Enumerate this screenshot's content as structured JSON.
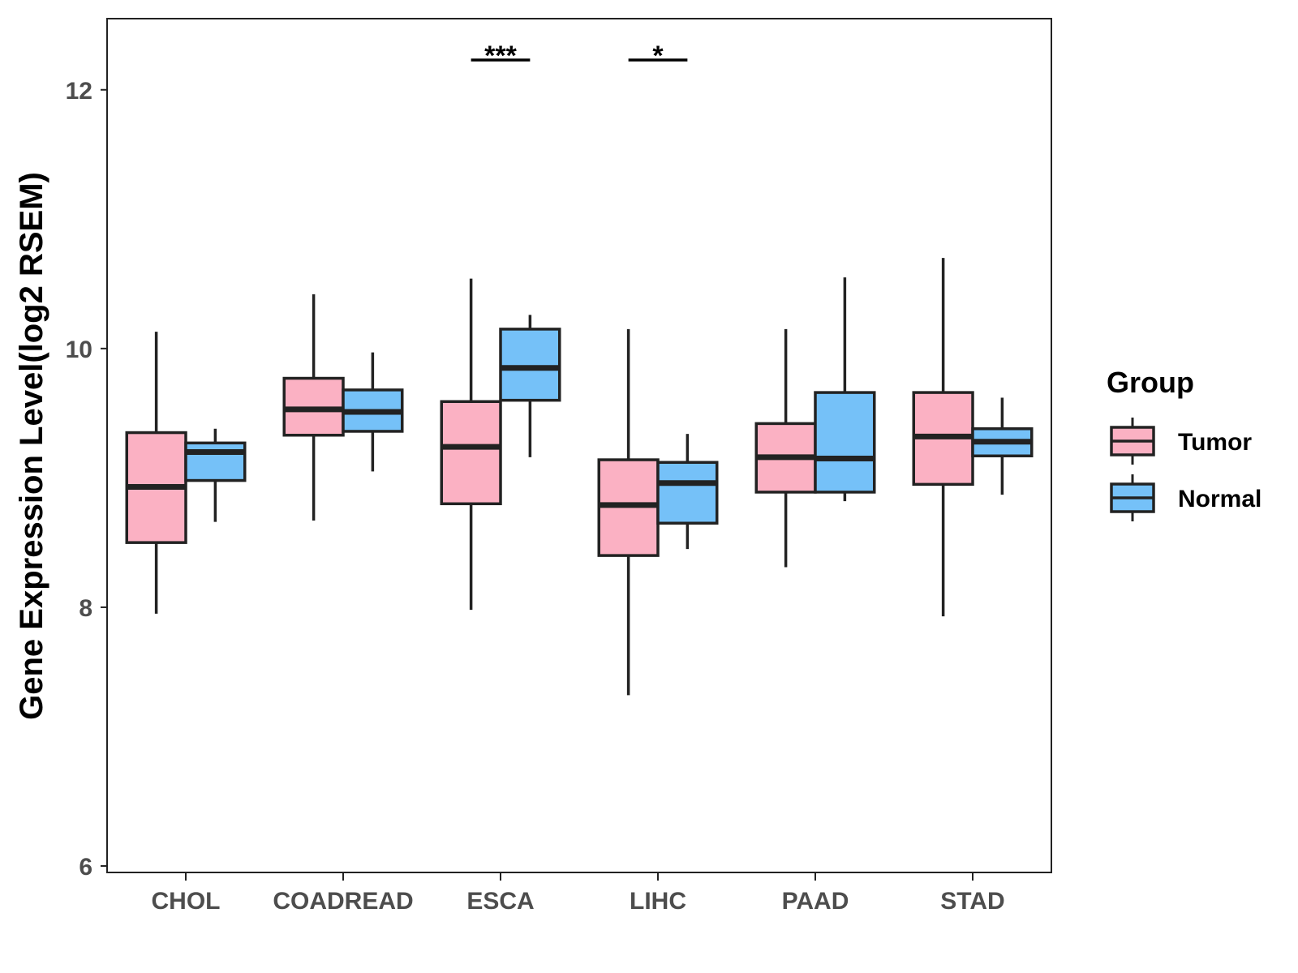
{
  "chart_data": {
    "type": "boxplot",
    "title": "",
    "xlabel": "",
    "ylabel": "Gene Expression Level(log2 RSEM)",
    "ylim": [
      5.95,
      12.55
    ],
    "yticks": [
      6,
      8,
      10,
      12
    ],
    "categories": [
      "CHOL",
      "COADREAD",
      "ESCA",
      "LIHC",
      "PAAD",
      "STAD"
    ],
    "legend": {
      "title": "Group",
      "position": "right",
      "entries": [
        {
          "name": "Tumor",
          "color": "#FBB1C3"
        },
        {
          "name": "Normal",
          "color": "#75C1F8"
        }
      ]
    },
    "series": [
      {
        "name": "Tumor",
        "color": "#FBB1C3",
        "boxes": [
          {
            "min": 7.95,
            "q1": 8.5,
            "median": 8.93,
            "q3": 9.35,
            "max": 10.13
          },
          {
            "min": 8.67,
            "q1": 9.33,
            "median": 9.53,
            "q3": 9.77,
            "max": 10.42
          },
          {
            "min": 7.98,
            "q1": 8.8,
            "median": 9.24,
            "q3": 9.59,
            "max": 10.54
          },
          {
            "min": 7.32,
            "q1": 8.4,
            "median": 8.79,
            "q3": 9.14,
            "max": 10.15
          },
          {
            "min": 8.31,
            "q1": 8.89,
            "median": 9.16,
            "q3": 9.42,
            "max": 10.15
          },
          {
            "min": 7.93,
            "q1": 8.95,
            "median": 9.32,
            "q3": 9.66,
            "max": 10.7
          }
        ]
      },
      {
        "name": "Normal",
        "color": "#75C1F8",
        "boxes": [
          {
            "min": 8.66,
            "q1": 8.98,
            "median": 9.2,
            "q3": 9.27,
            "max": 9.38
          },
          {
            "min": 9.05,
            "q1": 9.36,
            "median": 9.51,
            "q3": 9.68,
            "max": 9.97
          },
          {
            "min": 9.16,
            "q1": 9.6,
            "median": 9.85,
            "q3": 10.15,
            "max": 10.26
          },
          {
            "min": 8.45,
            "q1": 8.65,
            "median": 8.96,
            "q3": 9.12,
            "max": 9.34
          },
          {
            "min": 8.82,
            "q1": 8.89,
            "median": 9.15,
            "q3": 9.66,
            "max": 10.55
          },
          {
            "min": 8.87,
            "q1": 9.17,
            "median": 9.28,
            "q3": 9.38,
            "max": 9.62
          }
        ]
      }
    ],
    "annotations": [
      {
        "category": "ESCA",
        "label": "***"
      },
      {
        "category": "LIHC",
        "label": "*"
      }
    ]
  }
}
